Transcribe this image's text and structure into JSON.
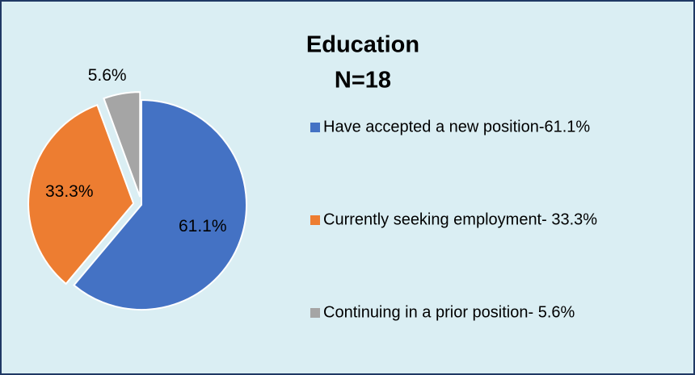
{
  "chart_data": {
    "type": "pie",
    "title": "Education",
    "subtitle": "N=18",
    "categories": [
      "Have accepted a new position-61.1%",
      "Currently seeking employment- 33.3%",
      "Continuing in a prior position- 5.6%"
    ],
    "values": [
      61.1,
      33.3,
      5.6
    ],
    "value_labels": [
      "61.1%",
      "33.3%",
      "5.6%"
    ],
    "colors": [
      "#4472c4",
      "#ed7d31",
      "#a5a5a5"
    ],
    "legend": "right"
  }
}
